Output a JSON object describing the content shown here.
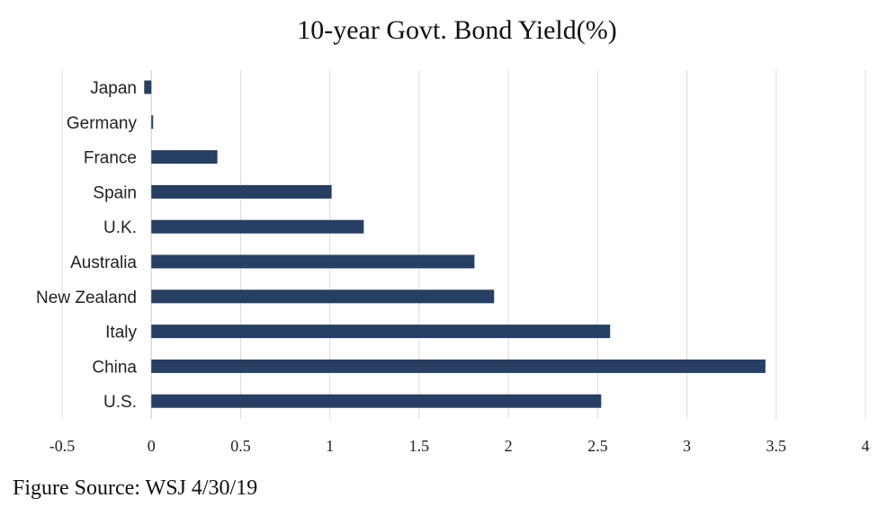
{
  "chart_data": {
    "type": "bar",
    "orientation": "horizontal",
    "title": "10-year Govt. Bond Yield(%)",
    "categories": [
      "Japan",
      "Germany",
      "France",
      "Spain",
      "U.K.",
      "Australia",
      "New Zealand",
      "Italy",
      "China",
      "U.S."
    ],
    "values": [
      -0.04,
      0.01,
      0.37,
      1.01,
      1.19,
      1.81,
      1.92,
      2.57,
      3.44,
      2.52
    ],
    "xlim": [
      -0.5,
      4
    ],
    "xticks": [
      "-0.5",
      "0",
      "0.5",
      "1",
      "1.5",
      "2",
      "2.5",
      "3",
      "3.5",
      "4"
    ],
    "xtick_values": [
      -0.5,
      0,
      0.5,
      1,
      1.5,
      2,
      2.5,
      3,
      3.5,
      4
    ],
    "grid": "vertical",
    "bar_color": "#263f63",
    "grid_color": "#d9d9d9"
  },
  "source": "Figure Source: WSJ 4/30/19"
}
